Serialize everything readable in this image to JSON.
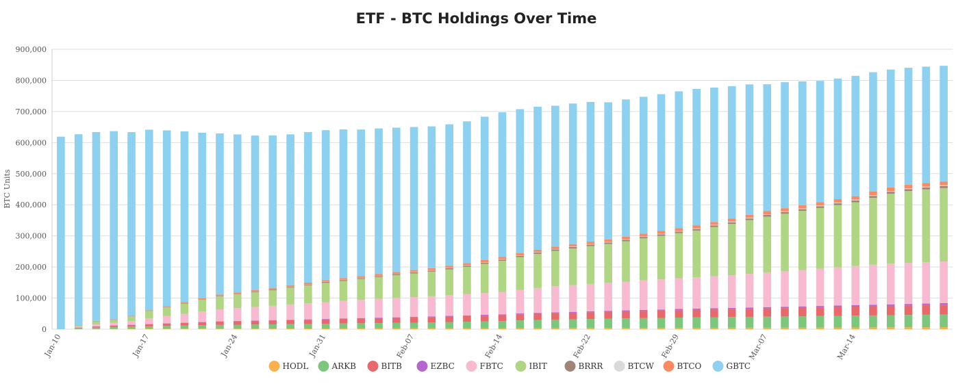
{
  "chart_data": {
    "type": "bar",
    "stacked": true,
    "title": "ETF - BTC Holdings Over Time",
    "ylabel": "BTC Units",
    "ylim": [
      0,
      900000
    ],
    "yticks": [
      0,
      100000,
      200000,
      300000,
      400000,
      500000,
      600000,
      700000,
      800000,
      900000
    ],
    "ytick_labels": [
      "0",
      "100,000",
      "200,000",
      "300,000",
      "400,000",
      "500,000",
      "600,000",
      "700,000",
      "800,000",
      "900,000"
    ],
    "xtick_labels": [
      "Jan-10",
      "Jan-17",
      "Jan-24",
      "Jan-31",
      "Feb-07",
      "Feb-14",
      "Feb-22",
      "Feb-29",
      "Mar-07",
      "Mar-14"
    ],
    "xtick_positions": [
      0,
      5,
      10,
      15,
      20,
      25,
      30,
      35,
      40,
      45
    ],
    "grid": true,
    "legend_position": "bottom",
    "series_colors": {
      "HODL": "#fbb14b",
      "ARKB": "#7cc77d",
      "BITB": "#e8696b",
      "EZBC": "#b666cf",
      "FBTC": "#f7bad0",
      "IBIT": "#b0d585",
      "BRRR": "#a08478",
      "BTCW": "#dadada",
      "BTCO": "#f98a62",
      "GBTC": "#8dd0ef"
    },
    "series": [
      {
        "name": "HODL",
        "values": [
          0,
          300,
          600,
          800,
          1000,
          1200,
          1400,
          1500,
          1600,
          1700,
          1800,
          1900,
          2000,
          2100,
          2200,
          2300,
          2400,
          2500,
          2600,
          2700,
          2800,
          2900,
          3000,
          3100,
          3200,
          3300,
          3400,
          3500,
          3600,
          3700,
          3800,
          3900,
          4000,
          4100,
          4200,
          4300,
          4400,
          4500,
          4600,
          4700,
          4800,
          4900,
          5000,
          5200,
          5400,
          5600,
          5800,
          6000,
          6200,
          6400,
          6600
        ]
      },
      {
        "name": "ARKB",
        "values": [
          0,
          2500,
          4500,
          6000,
          7000,
          8000,
          9000,
          10000,
          11000,
          12000,
          12500,
          13000,
          13500,
          14000,
          14500,
          15000,
          16000,
          16500,
          17000,
          17500,
          18000,
          19000,
          20000,
          21000,
          22000,
          23000,
          25000,
          26000,
          27000,
          28000,
          29000,
          30000,
          31000,
          31500,
          32000,
          33000,
          33500,
          34000,
          34500,
          35000,
          35500,
          36000,
          36500,
          37000,
          37500,
          38000,
          38500,
          39000,
          39500,
          40000,
          40500
        ]
      },
      {
        "name": "BITB",
        "values": [
          0,
          2500,
          4000,
          5000,
          6000,
          7000,
          8000,
          9000,
          10000,
          11000,
          11500,
          12000,
          12500,
          13000,
          13500,
          14000,
          14500,
          15000,
          15500,
          16000,
          16500,
          17000,
          17500,
          18000,
          18500,
          19000,
          19500,
          20000,
          20500,
          21000,
          21500,
          22000,
          22500,
          23000,
          23500,
          24000,
          24500,
          25000,
          25500,
          26000,
          26500,
          27000,
          27500,
          28000,
          28500,
          29000,
          29500,
          30000,
          30500,
          31000,
          31500
        ]
      },
      {
        "name": "EZBC",
        "values": [
          0,
          0,
          300,
          400,
          500,
          600,
          700,
          800,
          900,
          1000,
          1100,
          1200,
          1300,
          1400,
          1500,
          1600,
          1700,
          1800,
          1900,
          2000,
          2100,
          2200,
          2300,
          2400,
          2500,
          2600,
          2700,
          2800,
          2900,
          3000,
          3100,
          3200,
          3300,
          3400,
          3500,
          3600,
          3700,
          3800,
          3900,
          4000,
          4100,
          4200,
          4300,
          4400,
          4500,
          4600,
          4700,
          4800,
          4900,
          5000,
          5100
        ]
      },
      {
        "name": "FBTC",
        "values": [
          0,
          3000,
          6000,
          8000,
          12000,
          18000,
          23000,
          28000,
          33000,
          38000,
          41000,
          43500,
          46000,
          49000,
          51500,
          54000,
          56500,
          58500,
          60500,
          62500,
          64000,
          65000,
          66500,
          68000,
          70000,
          72000,
          76000,
          80000,
          84000,
          86000,
          88000,
          90000,
          92000,
          95000,
          97000,
          99000,
          101000,
          103000,
          105000,
          108000,
          111000,
          114000,
          117000,
          120000,
          123000,
          126000,
          129000,
          131000,
          132000,
          133000,
          134000
        ]
      },
      {
        "name": "IBIT",
        "values": [
          0,
          2500,
          9500,
          9000,
          14000,
          24000,
          28000,
          33000,
          38000,
          42000,
          44000,
          47000,
          50000,
          54000,
          58000,
          62000,
          64000,
          67000,
          70000,
          73000,
          76000,
          79000,
          83000,
          88000,
          94000,
          100000,
          105000,
          110000,
          114000,
          118000,
          122000,
          125000,
          130000,
          135000,
          140000,
          145000,
          150000,
          158000,
          165000,
          173000,
          180000,
          185000,
          190000,
          195000,
          200000,
          205000,
          215000,
          225000,
          231000,
          234000,
          236000
        ]
      },
      {
        "name": "BRRR",
        "values": [
          0,
          200,
          400,
          600,
          800,
          1000,
          1200,
          1400,
          1600,
          1800,
          2000,
          2200,
          2400,
          2600,
          2800,
          3000,
          3100,
          3200,
          3300,
          3400,
          3500,
          3600,
          3700,
          3800,
          3900,
          4000,
          4100,
          4200,
          4300,
          4400,
          4500,
          4600,
          4700,
          4800,
          4900,
          5000,
          5100,
          5200,
          5300,
          5400,
          5500,
          5600,
          5700,
          5800,
          5900,
          6000,
          6100,
          6200,
          6300,
          6400,
          6500
        ]
      },
      {
        "name": "BTCW",
        "values": [
          0,
          0,
          100,
          150,
          200,
          250,
          300,
          350,
          400,
          450,
          500,
          550,
          600,
          650,
          700,
          750,
          800,
          850,
          900,
          950,
          1000,
          1050,
          1100,
          1150,
          1200,
          1250,
          1300,
          1350,
          1400,
          1450,
          1500,
          1550,
          1600,
          1650,
          1700,
          1750,
          1800,
          1850,
          1900,
          1950,
          2000,
          2050,
          2100,
          2150,
          2200,
          2250,
          2300,
          2350,
          2400,
          2450,
          2500
        ]
      },
      {
        "name": "BTCO",
        "values": [
          0,
          800,
          1500,
          1800,
          2000,
          2300,
          2600,
          2900,
          3200,
          3500,
          3800,
          4100,
          4400,
          4700,
          5000,
          5200,
          5400,
          5600,
          5800,
          6000,
          6200,
          6400,
          6600,
          6800,
          7000,
          7200,
          7400,
          7600,
          7800,
          8000,
          8200,
          8400,
          8600,
          8800,
          9000,
          9200,
          9400,
          9600,
          9800,
          10000,
          10200,
          10400,
          10600,
          10800,
          11000,
          11200,
          11400,
          11600,
          11800,
          12000,
          12200
        ]
      },
      {
        "name": "GBTC",
        "values": [
          619000,
          615000,
          607000,
          605000,
          590000,
          579000,
          565000,
          549000,
          532000,
          518000,
          508000,
          497000,
          490000,
          485000,
          484000,
          482000,
          478000,
          471000,
          468000,
          464000,
          460000,
          456000,
          455000,
          456000,
          461000,
          465000,
          463000,
          460000,
          453000,
          452000,
          449000,
          441000,
          441000,
          440000,
          440000,
          440000,
          439000,
          432000,
          426000,
          419000,
          408000,
          405000,
          398000,
          390000,
          388000,
          387000,
          384000,
          379000,
          376000,
          374000,
          372000
        ]
      }
    ]
  }
}
